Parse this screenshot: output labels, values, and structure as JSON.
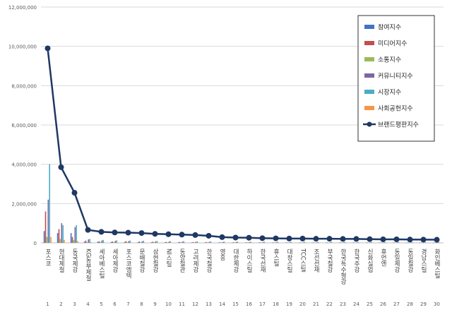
{
  "chart_data": {
    "type": "bar",
    "title": "",
    "xlabel": "",
    "ylabel": "",
    "ylim": [
      0,
      12000000
    ],
    "yticks": [
      0,
      2000000,
      4000000,
      6000000,
      8000000,
      10000000,
      12000000
    ],
    "ytick_labels": [
      "0",
      "2,000,000",
      "4,000,000",
      "6,000,000",
      "8,000,000",
      "10,000,000",
      "12,000,000"
    ],
    "grid": "horizontal",
    "legend_position": "top-right",
    "categories": [
      "포스코",
      "현대제철",
      "동국제강",
      "KG동부제철",
      "세아베스틸",
      "세아제강",
      "포스코엠텍",
      "문배철강",
      "삼현철강",
      "NI스틸",
      "동양철관",
      "고려제강",
      "한국철강",
      "영흥",
      "대한제강",
      "하이스틸",
      "한국선재",
      "휴스틸",
      "대창스틸",
      "TCC스틸",
      "조선선재",
      "부국철강",
      "한국특수형강",
      "한국주강",
      "신화실업",
      "휴먼엔",
      "동일제강",
      "동일철강",
      "경남스틸",
      "화인베스틸"
    ],
    "category_numbers": [
      "1",
      "2",
      "3",
      "4",
      "5",
      "6",
      "7",
      "8",
      "9",
      "10",
      "11",
      "12",
      "13",
      "14",
      "15",
      "16",
      "17",
      "18",
      "19",
      "20",
      "21",
      "22",
      "23",
      "24",
      "25",
      "26",
      "27",
      "28",
      "29",
      "30"
    ],
    "series": [
      {
        "name": "참여지수",
        "kind": "bar",
        "color": "#4472c4",
        "values": [
          600000,
          500000,
          500000,
          60000,
          60000,
          50000,
          45000,
          40000,
          35000,
          30000,
          30000,
          25000,
          25000,
          20000,
          20000,
          20000,
          20000,
          15000,
          15000,
          15000,
          15000,
          15000,
          15000,
          15000,
          15000,
          15000,
          15000,
          15000,
          10000,
          10000
        ]
      },
      {
        "name": "미디어지수",
        "kind": "bar",
        "color": "#c0504d",
        "values": [
          1600000,
          700000,
          300000,
          120000,
          80000,
          70000,
          90000,
          70000,
          60000,
          50000,
          50000,
          40000,
          40000,
          30000,
          30000,
          25000,
          25000,
          25000,
          20000,
          20000,
          20000,
          20000,
          20000,
          20000,
          20000,
          15000,
          15000,
          15000,
          15000,
          15000
        ]
      },
      {
        "name": "소통지수",
        "kind": "bar",
        "color": "#9bbb59",
        "values": [
          300000,
          200000,
          150000,
          40000,
          30000,
          25000,
          25000,
          20000,
          20000,
          15000,
          15000,
          15000,
          10000,
          10000,
          10000,
          10000,
          10000,
          10000,
          8000,
          8000,
          8000,
          8000,
          8000,
          8000,
          8000,
          6000,
          6000,
          6000,
          6000,
          6000
        ]
      },
      {
        "name": "커뮤니티지수",
        "kind": "bar",
        "color": "#8064a2",
        "values": [
          2200000,
          1000000,
          800000,
          180000,
          120000,
          100000,
          90000,
          80000,
          70000,
          60000,
          60000,
          50000,
          50000,
          40000,
          40000,
          35000,
          35000,
          30000,
          30000,
          25000,
          25000,
          25000,
          25000,
          20000,
          20000,
          20000,
          20000,
          20000,
          15000,
          15000
        ]
      },
      {
        "name": "시장지수",
        "kind": "bar",
        "color": "#4bacc6",
        "values": [
          4000000,
          900000,
          900000,
          200000,
          150000,
          130000,
          120000,
          110000,
          100000,
          90000,
          90000,
          80000,
          80000,
          70000,
          70000,
          60000,
          60000,
          60000,
          50000,
          50000,
          50000,
          50000,
          50000,
          40000,
          40000,
          40000,
          40000,
          40000,
          30000,
          30000
        ]
      },
      {
        "name": "사회공헌지수",
        "kind": "bar",
        "color": "#f79646",
        "values": [
          300000,
          150000,
          100000,
          30000,
          20000,
          20000,
          15000,
          15000,
          10000,
          10000,
          10000,
          10000,
          8000,
          8000,
          8000,
          8000,
          6000,
          6000,
          6000,
          6000,
          6000,
          6000,
          5000,
          5000,
          5000,
          5000,
          5000,
          5000,
          5000,
          5000
        ]
      },
      {
        "name": "브랜드평판지수",
        "kind": "line",
        "color": "#1f3864",
        "values": [
          9900000,
          3850000,
          2550000,
          660000,
          560000,
          530000,
          520000,
          500000,
          460000,
          440000,
          420000,
          400000,
          360000,
          290000,
          270000,
          260000,
          240000,
          230000,
          220000,
          220000,
          210000,
          210000,
          200000,
          200000,
          190000,
          180000,
          180000,
          170000,
          165000,
          160000
        ]
      }
    ]
  }
}
